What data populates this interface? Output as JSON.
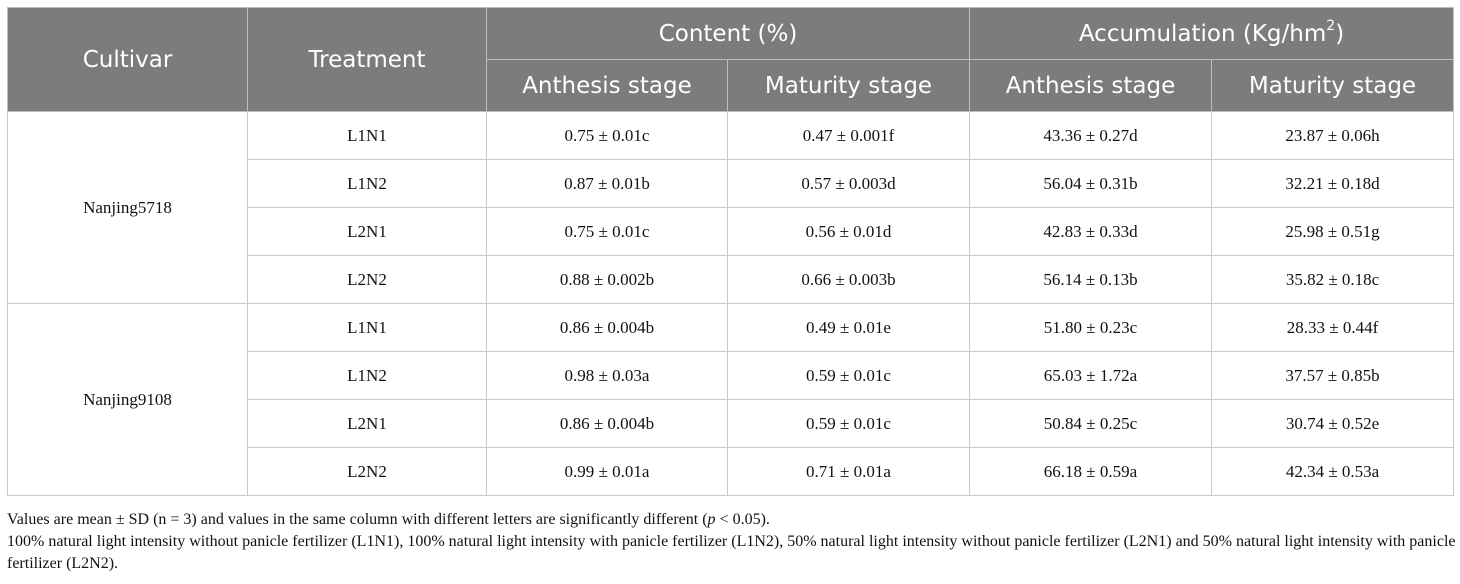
{
  "table": {
    "headers": {
      "cultivar": "Cultivar",
      "treatment": "Treatment",
      "content": "Content (%)",
      "accumulation_prefix": "Accumulation (Kg/hm",
      "accumulation_sup": "2",
      "accumulation_suffix": ")",
      "content_anthesis": "Anthesis stage",
      "content_maturity": "Maturity stage",
      "accum_anthesis": "Anthesis stage",
      "accum_maturity": "Maturity stage"
    },
    "groups": [
      {
        "cultivar": "Nanjing5718",
        "rows": [
          {
            "treatment": "L1N1",
            "content_anthesis": "0.75 ± 0.01c",
            "content_maturity": "0.47 ± 0.001f",
            "accum_anthesis": "43.36 ± 0.27d",
            "accum_maturity": "23.87 ± 0.06h"
          },
          {
            "treatment": "L1N2",
            "content_anthesis": "0.87 ± 0.01b",
            "content_maturity": "0.57 ± 0.003d",
            "accum_anthesis": "56.04 ± 0.31b",
            "accum_maturity": "32.21 ± 0.18d"
          },
          {
            "treatment": "L2N1",
            "content_anthesis": "0.75 ± 0.01c",
            "content_maturity": "0.56 ± 0.01d",
            "accum_anthesis": "42.83 ± 0.33d",
            "accum_maturity": "25.98 ± 0.51g"
          },
          {
            "treatment": "L2N2",
            "content_anthesis": "0.88 ± 0.002b",
            "content_maturity": "0.66 ± 0.003b",
            "accum_anthesis": "56.14 ± 0.13b",
            "accum_maturity": "35.82 ± 0.18c"
          }
        ]
      },
      {
        "cultivar": "Nanjing9108",
        "rows": [
          {
            "treatment": "L1N1",
            "content_anthesis": "0.86 ± 0.004b",
            "content_maturity": "0.49 ± 0.01e",
            "accum_anthesis": "51.80 ± 0.23c",
            "accum_maturity": "28.33 ± 0.44f"
          },
          {
            "treatment": "L1N2",
            "content_anthesis": "0.98 ± 0.03a",
            "content_maturity": "0.59 ± 0.01c",
            "accum_anthesis": "65.03 ± 1.72a",
            "accum_maturity": "37.57 ± 0.85b"
          },
          {
            "treatment": "L2N1",
            "content_anthesis": "0.86 ± 0.004b",
            "content_maturity": "0.59 ± 0.01c",
            "accum_anthesis": "50.84 ± 0.25c",
            "accum_maturity": "30.74 ± 0.52e"
          },
          {
            "treatment": "L2N2",
            "content_anthesis": "0.99 ± 0.01a",
            "content_maturity": "0.71 ± 0.01a",
            "accum_anthesis": "66.18 ± 0.59a",
            "accum_maturity": "42.34 ± 0.53a"
          }
        ]
      }
    ]
  },
  "notes": {
    "line1_before": "Values are mean ± SD (n = 3) and values in the same column with different letters are significantly different (",
    "line1_italic": "p",
    "line1_after": " < 0.05).",
    "line2": "100% natural light intensity without panicle fertilizer (L1N1), 100% natural light intensity with panicle fertilizer (L1N2), 50% natural light intensity without panicle fertilizer (L2N1) and 50% natural light intensity with panicle fertilizer (L2N2)."
  },
  "colors": {
    "header_bg": "#7b7c7b",
    "header_text": "#ffffff",
    "border": "#c9c9c9"
  }
}
